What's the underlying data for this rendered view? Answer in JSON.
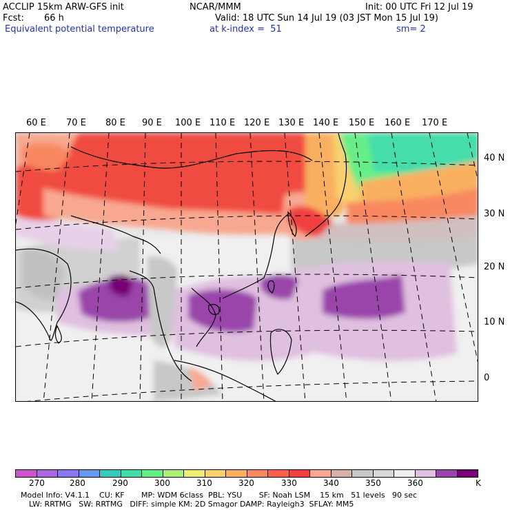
{
  "header": {
    "model": "ACCLIP 15km ARW-GFS init",
    "org": "NCAR/MMM",
    "init": "Init: 00 UTC Fri 12 Jul 19",
    "fcst_label": "Fcst:",
    "fcst_value": "66 h",
    "valid": "Valid: 18 UTC Sun 14 Jul 19 (03 JST Mon 15 Jul 19)",
    "field": "Equivalent potential temperature",
    "level": "at k-index =  51",
    "smooth": "sm= 2"
  },
  "lon_labels": [
    "60 E",
    "70 E",
    "80 E",
    "90 E",
    "100 E",
    "110 E",
    "120 E",
    "130 E",
    "140 E",
    "150 E",
    "160 E",
    "170 E"
  ],
  "lat_labels": [
    "40 N",
    "30 N",
    "20 N",
    "10 N",
    "0"
  ],
  "colorbar": {
    "colors": [
      "#cc55cc",
      "#aa66dd",
      "#8877ee",
      "#6699ee",
      "#33ccbb",
      "#44ddaa",
      "#66ee88",
      "#aaf077",
      "#eeee77",
      "#f8d070",
      "#f8b060",
      "#f88860",
      "#f86050",
      "#f04040",
      "#f8a890",
      "#d8b0a8",
      "#c8c8c8",
      "#d8d8d8",
      "#f0f0f0",
      "#e0c0e0",
      "#9944aa",
      "#770077"
    ],
    "labels": [
      "270",
      "280",
      "290",
      "300",
      "310",
      "320",
      "330",
      "340",
      "350",
      "360"
    ],
    "unit": "K"
  },
  "footer": {
    "line1": "Model Info: V4.1.1    CU: KF       MP: WDM 6class  PBL: YSU       SF: Noah LSM    15 km   51 levels   90 sec",
    "line2": "LW: RRTMG   SW: RRTMG   DIFF: simple KM: 2D Smagor DAMP: Rayleigh3  SFLAY: MM5"
  }
}
